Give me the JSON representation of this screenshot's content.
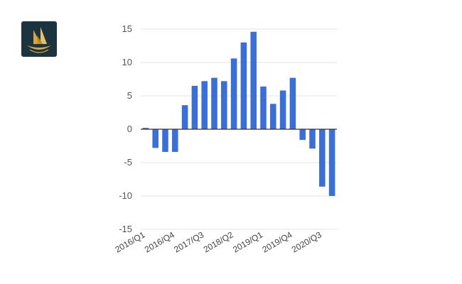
{
  "logo": {
    "icon": "ship-logo-icon",
    "background": "#1b3440",
    "accent": "#d9a441"
  },
  "chart_data": {
    "type": "bar",
    "title": "",
    "xlabel": "",
    "ylabel": "",
    "color": "#3b6fd4",
    "ylim": [
      -15,
      15
    ],
    "yticks": [
      15,
      10,
      5,
      0,
      -5,
      -10,
      -15
    ],
    "categories": [
      "2016/Q1",
      "2016/Q2",
      "2016/Q3",
      "2016/Q4",
      "2017/Q1",
      "2017/Q2",
      "2017/Q3",
      "2017/Q4",
      "2018/Q1",
      "2018/Q2",
      "2018/Q3",
      "2018/Q4",
      "2019/Q1",
      "2019/Q2",
      "2019/Q3",
      "2019/Q4",
      "2020/Q1",
      "2020/Q2",
      "2020/Q3",
      "2020/Q4"
    ],
    "values": [
      0.2,
      -2.8,
      -3.4,
      -3.4,
      3.6,
      6.5,
      7.2,
      7.7,
      7.2,
      10.6,
      13.0,
      14.6,
      6.4,
      3.8,
      5.8,
      7.7,
      -1.6,
      -2.9,
      -8.6,
      -10.0
    ],
    "xtick_labels": [
      "2016/Q1",
      "2016/Q4",
      "2017/Q3",
      "2018/Q2",
      "2019/Q1",
      "2019/Q4",
      "2020/Q3"
    ],
    "grid": true
  }
}
